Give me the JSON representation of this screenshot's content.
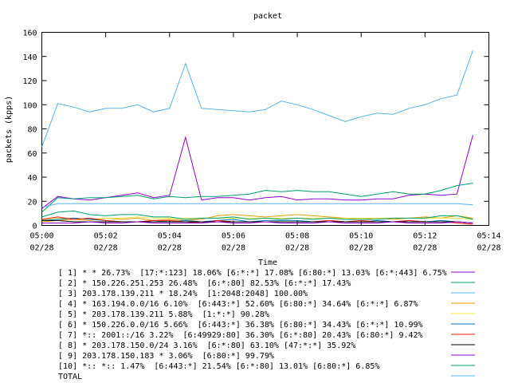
{
  "chart_data": {
    "type": "line",
    "title": "packet",
    "xlabel": "Time",
    "ylabel": "packets (kpps)",
    "ylim": [
      0,
      160
    ],
    "yticks": [
      0,
      20,
      40,
      60,
      80,
      100,
      120,
      140,
      160
    ],
    "xlim": [
      0,
      14
    ],
    "xticks": [
      {
        "x": 0,
        "time": "05:00",
        "date": "02/28"
      },
      {
        "x": 2,
        "time": "05:02",
        "date": "02/28"
      },
      {
        "x": 4,
        "time": "05:04",
        "date": "02/28"
      },
      {
        "x": 6,
        "time": "05:06",
        "date": "02/28"
      },
      {
        "x": 8,
        "time": "05:08",
        "date": "02/28"
      },
      {
        "x": 10,
        "time": "05:10",
        "date": "02/28"
      },
      {
        "x": 12,
        "time": "05:12",
        "date": "02/28"
      },
      {
        "x": 14,
        "time": "05:14",
        "date": "02/28"
      }
    ],
    "x": [
      0,
      0.5,
      1,
      1.5,
      2,
      2.5,
      3,
      3.5,
      4,
      4.5,
      5,
      5.5,
      6,
      6.5,
      7,
      7.5,
      8,
      8.5,
      9,
      9.5,
      10,
      10.5,
      11,
      11.5,
      12,
      12.5,
      13,
      13.5
    ],
    "series": [
      {
        "name": "[ 1] * * 26.73%  [17:*:123] 18.06% [6:*:*] 17.08% [6:80:*] 13.03% [6:*:443] 6.75%",
        "color": "#9400d3",
        "values": [
          14,
          24,
          22,
          21,
          23,
          25,
          27,
          23,
          25,
          73,
          21,
          23,
          23,
          21,
          23,
          24,
          21,
          22,
          22,
          21,
          21,
          22,
          22,
          25,
          26,
          25,
          26,
          75
        ]
      },
      {
        "name": "[ 2] * 150.226.251.253 26.48%  [6:*:80] 82.53% [6:*:*] 17.43%",
        "color": "#009e73",
        "values": [
          11,
          23,
          22,
          23,
          23,
          24,
          25,
          22,
          24,
          23,
          24,
          24,
          25,
          26,
          29,
          28,
          29,
          28,
          28,
          26,
          24,
          26,
          28,
          26,
          26,
          29,
          33,
          35
        ]
      },
      {
        "name": "[ 3] 203.178.139.211 * 18.24%  [1:2048:2048] 100.00%",
        "color": "#56b4e9",
        "values": [
          65,
          101,
          98,
          94,
          97,
          97,
          100,
          94,
          97,
          134,
          97,
          96,
          95,
          94,
          96,
          103,
          100,
          96,
          91,
          86,
          90,
          93,
          92,
          97,
          100,
          105,
          108,
          145
        ]
      },
      {
        "name": "[ 4] * 163.194.0.0/16 6.10%  [6:443:*] 52.60% [6:80:*] 34.64% [6:*:*] 6.87%",
        "color": "#e69f00",
        "values": [
          3,
          4,
          5,
          4,
          6,
          5,
          6,
          4,
          5,
          4,
          5,
          8,
          9,
          8,
          7,
          8,
          9,
          8,
          7,
          6,
          5,
          6,
          5,
          6,
          7,
          6,
          8,
          6
        ]
      },
      {
        "name": "[ 5] * 203.178.139.211 5.88%  [1:*:*] 90.28%",
        "color": "#f0e442",
        "values": [
          5,
          6,
          6,
          5,
          6,
          6,
          7,
          6,
          6,
          6,
          6,
          6,
          6,
          6,
          6,
          6,
          6,
          6,
          6,
          6,
          6,
          6,
          6,
          6,
          6,
          6,
          6,
          5
        ]
      },
      {
        "name": "[ 6] * 150.226.0.0/16 5.66%  [6:443:*] 36.38% [6:80:*] 34.43% [6:*:*] 10.99%",
        "color": "#0072b2",
        "values": [
          4,
          5,
          6,
          5,
          4,
          3,
          3,
          4,
          3,
          4,
          3,
          4,
          5,
          3,
          4,
          4,
          4,
          3,
          4,
          3,
          3,
          4,
          3,
          4,
          3,
          4,
          3,
          2
        ]
      },
      {
        "name": "[ 7] *:: 2001::/16 3.22%  [6:49929:80] 36.30% [6:*:80] 20.43% [6:80:*] 9.42%",
        "color": "#e51e10",
        "values": [
          5,
          7,
          5,
          6,
          4,
          3,
          3,
          4,
          4,
          3,
          2,
          4,
          3,
          3,
          3,
          3,
          3,
          3,
          4,
          3,
          4,
          3,
          3,
          4,
          3,
          3,
          2,
          1
        ]
      },
      {
        "name": "[ 8] * 203.178.150.0/24 3.16%  [6:*:80] 63.10% [47:*:*] 35.92%",
        "color": "#000000",
        "values": [
          4,
          4,
          3,
          3,
          3,
          3,
          3,
          3,
          3,
          3,
          3,
          3,
          3,
          3,
          3,
          3,
          3,
          3,
          3,
          3,
          3,
          3,
          3,
          3,
          3,
          3,
          3,
          2
        ]
      },
      {
        "name": "[ 9] 203.178.150.183 * 3.06%  [6:80:*] 99.79%",
        "color": "#9400d3",
        "values": [
          2,
          2,
          2,
          3,
          2,
          2,
          3,
          2,
          2,
          2,
          2,
          3,
          2,
          2,
          3,
          2,
          2,
          2,
          3,
          2,
          2,
          2,
          3,
          2,
          2,
          2,
          3,
          2
        ]
      },
      {
        "name": "[10] *:: *:: 1.47%  [6:443:*] 21.54% [6:*:80] 13.01% [6:80:*] 6.85%",
        "color": "#009e73",
        "values": [
          7,
          11,
          12,
          9,
          8,
          9,
          9,
          7,
          7,
          5,
          6,
          6,
          7,
          5,
          6,
          5,
          6,
          5,
          6,
          5,
          5,
          5,
          6,
          6,
          6,
          8,
          8,
          5
        ]
      },
      {
        "name": "TOTAL",
        "color": "#56b4e9",
        "values": [
          15,
          18,
          18,
          18,
          18,
          18,
          18,
          18,
          18,
          18,
          18,
          18,
          18,
          18,
          18,
          18,
          18,
          18,
          18,
          18,
          18,
          18,
          18,
          18,
          18,
          18,
          18,
          17
        ]
      }
    ]
  }
}
